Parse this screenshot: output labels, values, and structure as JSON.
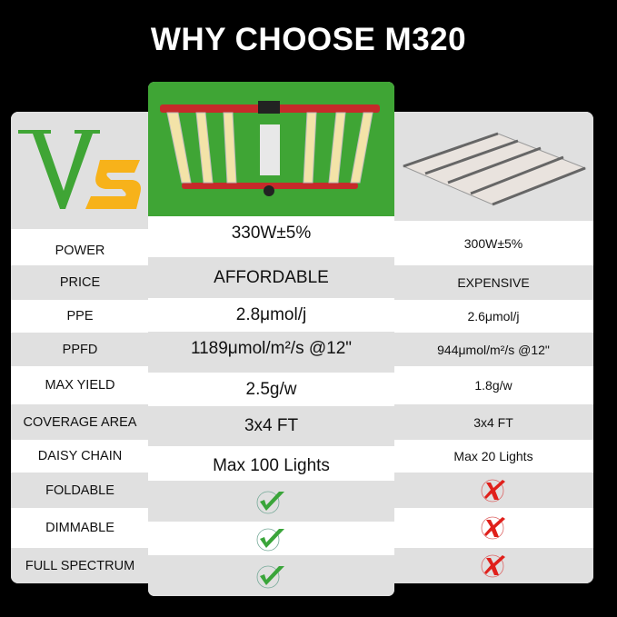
{
  "title": "WHY CHOOSE M320",
  "vs_logo": "Vs",
  "colors": {
    "green": "#3fa535",
    "orange": "#f7b21a",
    "check": "#3aa53a",
    "cross": "#e0201b"
  },
  "rows": [
    {
      "label": "POWER",
      "m320": "330W±5%",
      "other": "300W±5%"
    },
    {
      "label": "PRICE",
      "m320": "AFFORDABLE",
      "other": "EXPENSIVE"
    },
    {
      "label": "PPE",
      "m320": "2.8μmol/j",
      "other": "2.6μmol/j"
    },
    {
      "label": "PPFD",
      "m320": "1189μmol/m²/s @12\"",
      "other": "944μmol/m²/s @12\""
    },
    {
      "label": "MAX YIELD",
      "m320": "2.5g/w",
      "other": "1.8g/w"
    },
    {
      "label": "COVERAGE AREA",
      "m320": "3x4 FT",
      "other": "3x4 FT"
    },
    {
      "label": "DAISY CHAIN",
      "m320": "Max 100 Lights",
      "other": "Max 20 Lights"
    },
    {
      "label": "FOLDABLE",
      "m320_icon": "check-icon",
      "other_icon": "cross-icon"
    },
    {
      "label": "DIMMABLE",
      "m320_icon": "check-icon",
      "other_icon": "cross-icon"
    },
    {
      "label": "FULL SPECTRUM",
      "m320_icon": "check-icon",
      "other_icon": "cross-icon"
    }
  ]
}
